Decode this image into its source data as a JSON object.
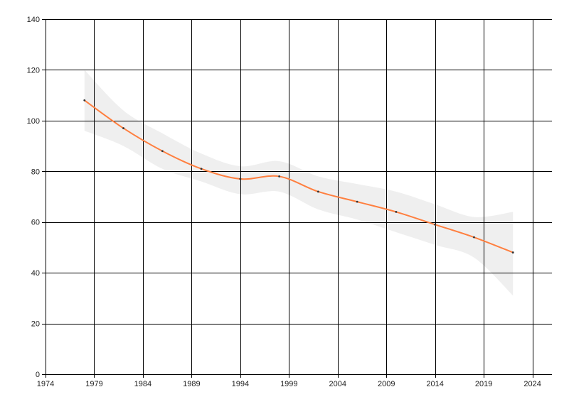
{
  "chart_data": {
    "type": "line",
    "title": "",
    "xlabel": "",
    "ylabel": "",
    "xlim": [
      1974,
      2026
    ],
    "ylim": [
      0,
      140
    ],
    "x_ticks": [
      1974,
      1979,
      1984,
      1989,
      1994,
      1999,
      2004,
      2009,
      2014,
      2019,
      2024
    ],
    "y_ticks": [
      0,
      20,
      40,
      60,
      80,
      100,
      120,
      140
    ],
    "grid": true,
    "legend": "none",
    "colors": {
      "line": "#ff7f3f",
      "band": "#efefef",
      "grid": "#000000",
      "marker": "#333333"
    },
    "series": [
      {
        "x": [
          1978,
          1982,
          1986,
          1990,
          1994,
          1998,
          2002,
          2006,
          2010,
          2014,
          2018,
          2022
        ],
        "y": [
          108,
          97,
          88,
          81,
          77,
          78,
          72,
          68,
          64,
          59,
          54,
          48
        ],
        "lower": [
          96,
          90,
          81,
          76,
          71,
          72,
          65,
          61,
          56,
          51,
          46,
          31
        ],
        "upper": [
          120,
          104,
          95,
          87,
          82,
          84,
          78,
          75,
          72,
          67,
          62,
          64
        ]
      }
    ]
  }
}
